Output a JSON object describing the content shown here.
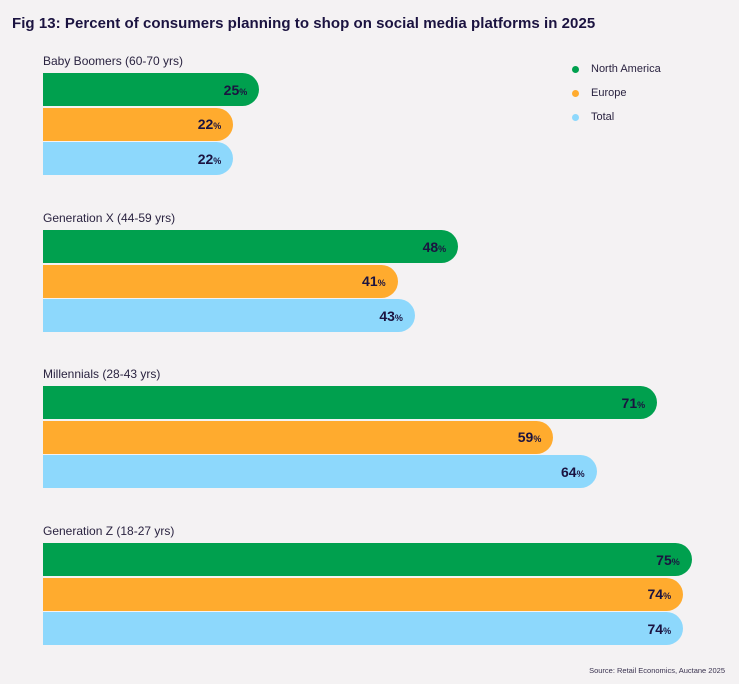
{
  "title": "Fig 13: Percent of consumers planning to shop on social media platforms in 2025",
  "source": "Source: Retail Economics, Auctane 2025",
  "colors": {
    "north_america": "#00a04e",
    "europe": "#ffab2e",
    "total": "#8dd8fc"
  },
  "chart_data": {
    "type": "bar",
    "orientation": "horizontal",
    "title": "Fig 13: Percent of consumers planning to shop on social media platforms in 2025",
    "value_suffix": "%",
    "xlim": [
      0,
      100
    ],
    "grid": false,
    "legend_position": "top-right",
    "categories": [
      "Baby Boomers (60-70 yrs)",
      "Generation X (44-59 yrs)",
      "Millennials (28-43 yrs)",
      "Generation Z (18-27 yrs)"
    ],
    "series": [
      {
        "name": "North America",
        "color": "#00a04e",
        "values": [
          25,
          48,
          71,
          75
        ]
      },
      {
        "name": "Europe",
        "color": "#ffab2e",
        "values": [
          22,
          41,
          59,
          74
        ]
      },
      {
        "name": "Total",
        "color": "#8dd8fc",
        "values": [
          22,
          43,
          64,
          74
        ]
      }
    ]
  }
}
